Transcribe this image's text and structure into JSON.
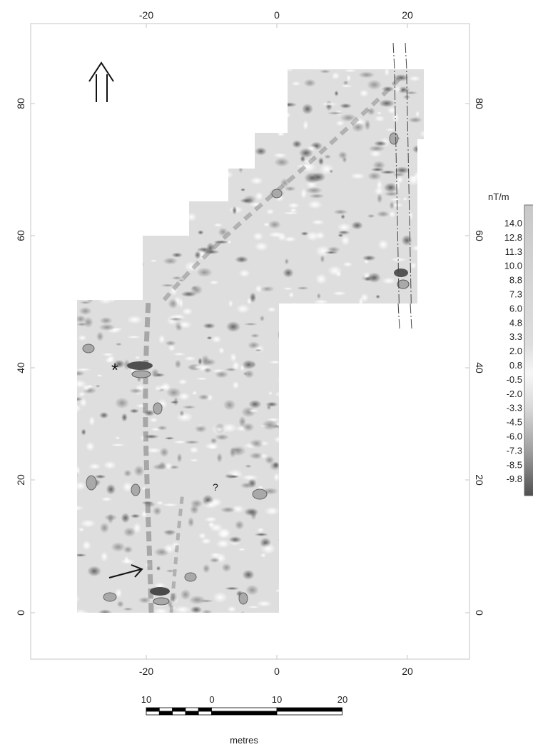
{
  "map": {
    "x_ticks_top": [
      "-20",
      "0",
      "20"
    ],
    "x_ticks_bottom": [
      "-20",
      "0",
      "20"
    ],
    "y_ticks_left": [
      "0",
      "20",
      "40",
      "60",
      "80"
    ],
    "y_ticks_right": [
      "0",
      "20",
      "40",
      "60",
      "80"
    ],
    "north_arrow_icon": "double-up-arrow-icon",
    "marker_asterisk": "*",
    "marker_question": "?",
    "pointer_arrow_icon": "arrow-right-up-icon"
  },
  "legend": {
    "unit": "nT/m",
    "values": [
      "14.0",
      "12.8",
      "11.3",
      "10.0",
      "8.8",
      "7.3",
      "6.0",
      "4.8",
      "3.3",
      "2.0",
      "0.8",
      "-0.5",
      "-2.0",
      "-3.3",
      "-4.5",
      "-6.0",
      "-7.3",
      "-8.5",
      "-9.8"
    ]
  },
  "scalebar": {
    "labels": [
      "10",
      "0",
      "10",
      "20"
    ],
    "unit": "metres"
  },
  "colors": {
    "survey_background": "#dedede",
    "frame": "#d6d6d6",
    "dark_anomaly": "#6b6b6b",
    "light_anomaly": "#f4f4f4"
  }
}
